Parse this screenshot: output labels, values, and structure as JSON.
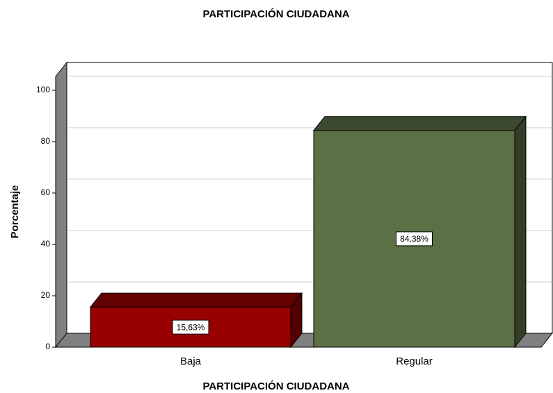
{
  "chart_data": {
    "type": "bar3d",
    "title": "PARTICIPACIÓN CIUDADANA",
    "x_label": "PARTICIPACIÓN CIUDADANA",
    "y_label": "Porcentaje",
    "categories": [
      "Baja",
      "Regular"
    ],
    "values": [
      15.63,
      84.38
    ],
    "value_labels": [
      "15,63%",
      "84,38%"
    ],
    "colors": [
      "#990000",
      "#5c7046"
    ],
    "ylim": [
      0,
      100
    ],
    "yticks": [
      0,
      20,
      40,
      60,
      80,
      100
    ],
    "grid": true
  }
}
